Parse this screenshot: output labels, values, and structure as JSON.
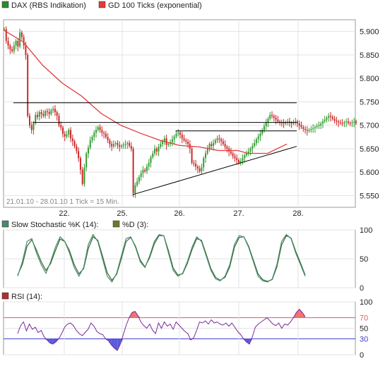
{
  "legend": {
    "price_label": "DAX (RBS Indikation)",
    "ma_label": "GD 100 Ticks (exponential)",
    "stoch_k_label": "Slow Stochastic %K (14):",
    "stoch_d_label": "%D (3):",
    "rsi_label": "RSI (14):"
  },
  "colors": {
    "up_candle": "#2e9a2e",
    "down_candle": "#cc2222",
    "ma_line": "#e23a3a",
    "trend_line": "#000000",
    "stoch_k": "#4a8a6a",
    "stoch_d": "#3a6a3a",
    "rsi_line": "#7a2a9a",
    "rsi_upper_band": "#e06060",
    "rsi_lower_band": "#4040cc",
    "overbought_fill": "#f07070",
    "oversold_fill": "#5a5ae0"
  },
  "period_note": "21.01.10 - 28.01.10   1 Tick = 15 Min.",
  "chart_data": [
    {
      "type": "candlestick",
      "ylim": [
        5525,
        5925
      ],
      "yticks": [
        "5.900",
        "5.850",
        "5.800",
        "5.750",
        "5.700",
        "5.650",
        "5.600",
        "5.550"
      ],
      "xticks": [
        "22.",
        "25.",
        "26.",
        "27.",
        "28."
      ],
      "series": [
        {
          "name": "DAX (RBS Indikation)",
          "x": [
            0,
            1,
            2,
            3,
            4,
            5,
            6,
            7,
            8,
            9,
            10,
            11,
            12,
            13,
            14,
            15,
            16,
            17,
            18,
            19,
            20,
            21,
            22,
            23,
            24,
            25,
            26,
            27,
            28,
            29,
            30,
            31,
            32,
            33,
            34,
            35,
            36,
            37,
            38,
            39,
            40,
            41,
            42,
            43,
            44,
            45,
            46,
            47,
            48,
            49,
            50,
            51,
            52,
            53,
            54,
            55,
            56,
            57,
            58,
            59,
            60,
            61,
            62,
            63,
            64,
            65,
            66,
            67,
            68,
            69,
            70,
            71,
            72,
            73,
            74,
            75,
            76,
            77,
            78,
            79,
            80,
            81,
            82,
            83,
            84,
            85,
            86,
            87,
            88,
            89,
            90,
            91,
            92,
            93,
            94,
            95,
            96,
            97,
            98,
            99,
            100,
            101,
            102,
            103,
            104,
            105,
            106,
            107,
            108,
            109,
            110,
            111,
            112,
            113,
            114,
            115,
            116,
            117,
            118,
            119,
            120,
            121,
            122,
            123,
            124,
            125,
            126,
            127,
            128,
            129,
            130,
            131,
            132,
            133,
            134,
            135,
            136,
            137,
            138,
            139,
            140,
            141,
            142,
            143,
            144,
            145,
            146,
            147,
            148,
            149,
            150,
            151,
            152,
            153,
            154,
            155,
            156,
            157,
            158,
            159,
            160,
            161,
            162,
            163,
            164,
            165,
            166,
            167,
            168,
            169,
            170,
            171,
            172,
            173,
            174,
            175,
            176,
            177,
            178,
            179,
            180
          ],
          "values": [
            5905,
            5880,
            5870,
            5862,
            5858,
            5870,
            5880,
            5868,
            5898,
            5888,
            5870,
            5850,
            5720,
            5700,
            5690,
            5705,
            5722,
            5718,
            5728,
            5724,
            5720,
            5730,
            5728,
            5724,
            5732,
            5735,
            5728,
            5720,
            5700,
            5695,
            5682,
            5676,
            5680,
            5690,
            5672,
            5666,
            5655,
            5645,
            5630,
            5605,
            5575,
            5610,
            5640,
            5652,
            5668,
            5675,
            5684,
            5690,
            5696,
            5690,
            5684,
            5682,
            5675,
            5668,
            5660,
            5655,
            5660,
            5662,
            5658,
            5654,
            5656,
            5658,
            5660,
            5662,
            5656,
            5650,
            5555,
            5572,
            5580,
            5590,
            5598,
            5605,
            5602,
            5612,
            5620,
            5632,
            5640,
            5650,
            5644,
            5654,
            5660,
            5666,
            5672,
            5658,
            5660,
            5664,
            5670,
            5676,
            5682,
            5684,
            5680,
            5672,
            5668,
            5665,
            5660,
            5650,
            5620,
            5618,
            5612,
            5608,
            5602,
            5610,
            5630,
            5640,
            5650,
            5660,
            5656,
            5662,
            5668,
            5672,
            5670,
            5666,
            5660,
            5654,
            5650,
            5644,
            5640,
            5634,
            5630,
            5626,
            5620,
            5624,
            5630,
            5636,
            5640,
            5644,
            5650,
            5656,
            5662,
            5670,
            5676,
            5682,
            5690,
            5698,
            5706,
            5714,
            5722,
            5720,
            5716,
            5712,
            5708,
            5706,
            5705,
            5704,
            5706,
            5708,
            5705,
            5704,
            5706,
            5708,
            5704,
            5700,
            5696,
            5692,
            5690,
            5688,
            5690,
            5692,
            5694,
            5696,
            5698,
            5700,
            5704,
            5708,
            5712,
            5716,
            5720,
            5718,
            5714,
            5710,
            5708,
            5706,
            5705,
            5704,
            5706,
            5708,
            5705,
            5704,
            5706,
            5708,
            5705
          ]
        },
        {
          "name": "GD 100 Ticks (exponential)",
          "x": [
            0,
            10,
            20,
            30,
            40,
            50,
            60,
            70,
            80,
            90,
            100,
            110,
            120,
            125,
            135,
            145
          ],
          "values": [
            5903,
            5878,
            5828,
            5790,
            5762,
            5725,
            5700,
            5683,
            5668,
            5657,
            5654,
            5646,
            5646,
            5640,
            5640,
            5660
          ]
        }
      ],
      "trend_lines": [
        {
          "name": "horizontal-resistance-1",
          "x1": 5,
          "x2": 150,
          "y": 5748
        },
        {
          "name": "horizontal-resistance-2",
          "x1": 15,
          "x2": 150,
          "y": 5706
        },
        {
          "name": "horizontal-resistance-3",
          "x1": 88,
          "x2": 150,
          "y": 5688
        },
        {
          "name": "ascending-support",
          "x1": 66,
          "x2": 150,
          "y1": 5552,
          "y2": 5655
        }
      ]
    },
    {
      "type": "line",
      "title": "Slow Stochastic %K (14) / %D (3)",
      "ylim": [
        0,
        100
      ],
      "yticks": [
        "100",
        "50",
        "0"
      ],
      "series": [
        {
          "name": "Slow Stochastic %K (14)",
          "values": [
            20,
            45,
            80,
            85,
            60,
            40,
            25,
            45,
            70,
            88,
            80,
            60,
            35,
            20,
            35,
            75,
            92,
            80,
            50,
            20,
            10,
            25,
            55,
            85,
            88,
            70,
            45,
            35,
            55,
            80,
            92,
            90,
            60,
            30,
            20,
            25,
            45,
            70,
            88,
            80,
            55,
            30,
            15,
            12,
            20,
            40,
            75,
            90,
            88,
            70,
            45,
            20,
            12,
            10,
            15,
            40,
            80,
            92,
            85,
            60,
            40,
            20
          ]
        },
        {
          "name": "%D (3)",
          "values": [
            22,
            40,
            72,
            83,
            65,
            45,
            30,
            42,
            64,
            84,
            80,
            64,
            40,
            24,
            33,
            68,
            88,
            82,
            55,
            26,
            13,
            23,
            50,
            80,
            87,
            72,
            48,
            36,
            52,
            76,
            90,
            90,
            64,
            34,
            22,
            24,
            42,
            66,
            85,
            82,
            58,
            33,
            18,
            13,
            18,
            36,
            70,
            87,
            88,
            72,
            48,
            24,
            14,
            11,
            14,
            36,
            74,
            90,
            86,
            63,
            43,
            22
          ]
        }
      ]
    },
    {
      "type": "line",
      "title": "RSI (14)",
      "ylim": [
        0,
        100
      ],
      "yticks": [
        "100",
        "70",
        "50",
        "30",
        "0"
      ],
      "series": [
        {
          "name": "RSI (14)",
          "values": [
            40,
            55,
            62,
            45,
            58,
            48,
            52,
            42,
            46,
            34,
            28,
            22,
            20,
            24,
            30,
            40,
            52,
            58,
            60,
            55,
            46,
            40,
            36,
            42,
            48,
            60,
            54,
            44,
            40,
            38,
            30,
            26,
            18,
            12,
            8,
            20,
            38,
            56,
            70,
            80,
            82,
            74,
            62,
            55,
            50,
            58,
            46,
            40,
            60,
            50,
            62,
            54,
            58,
            48,
            62,
            56,
            50,
            44,
            40,
            28,
            32,
            46,
            62,
            60,
            64,
            58,
            66,
            60,
            62,
            58,
            56,
            60,
            54,
            60,
            52,
            44,
            38,
            30,
            24,
            20,
            34,
            52,
            58,
            62,
            66,
            70,
            64,
            58,
            55,
            60,
            50,
            58,
            56,
            62,
            70,
            80,
            86,
            80,
            72
          ]
        }
      ]
    }
  ]
}
